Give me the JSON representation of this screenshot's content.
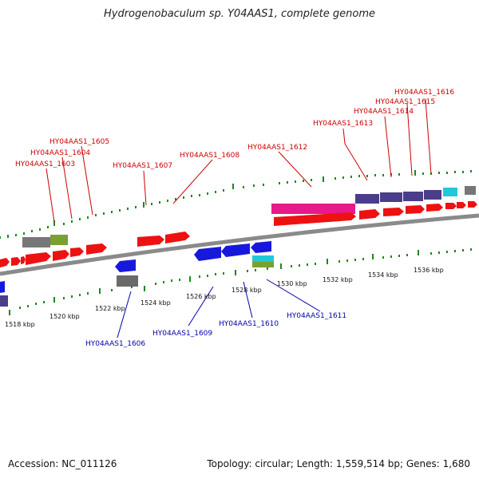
{
  "title": "Hydrogenobaculum sp. Y04AAS1, complete genome",
  "footer": {
    "accession": "Accession: NC_011126",
    "summary": "Topology: circular; Length: 1,559,514 bp; Genes: 1,680"
  },
  "colors": {
    "forward_label": "#cc0000",
    "reverse_label": "#0000aa",
    "backbone": "#8a8a8a",
    "tick": "#1a8a1a"
  },
  "ticks": {
    "labels": [
      "1518 kbp",
      "1520 kbp",
      "1522 kbp",
      "1524 kbp",
      "1526 kbp",
      "1528 kbp",
      "1530 kbp",
      "1532 kbp",
      "1534 kbp",
      "1536 kbp"
    ]
  },
  "forward_genes": [
    "HY04AAS1_1603",
    "HY04AAS1_1604",
    "HY04AAS1_1605",
    "HY04AAS1_1607",
    "HY04AAS1_1608",
    "HY04AAS1_1612",
    "HY04AAS1_1613",
    "HY04AAS1_1614",
    "HY04AAS1_1615",
    "HY04AAS1_1616"
  ],
  "reverse_genes": [
    "HY04AAS1_1606",
    "HY04AAS1_1609",
    "HY04AAS1_1610",
    "HY04AAS1_1611"
  ]
}
